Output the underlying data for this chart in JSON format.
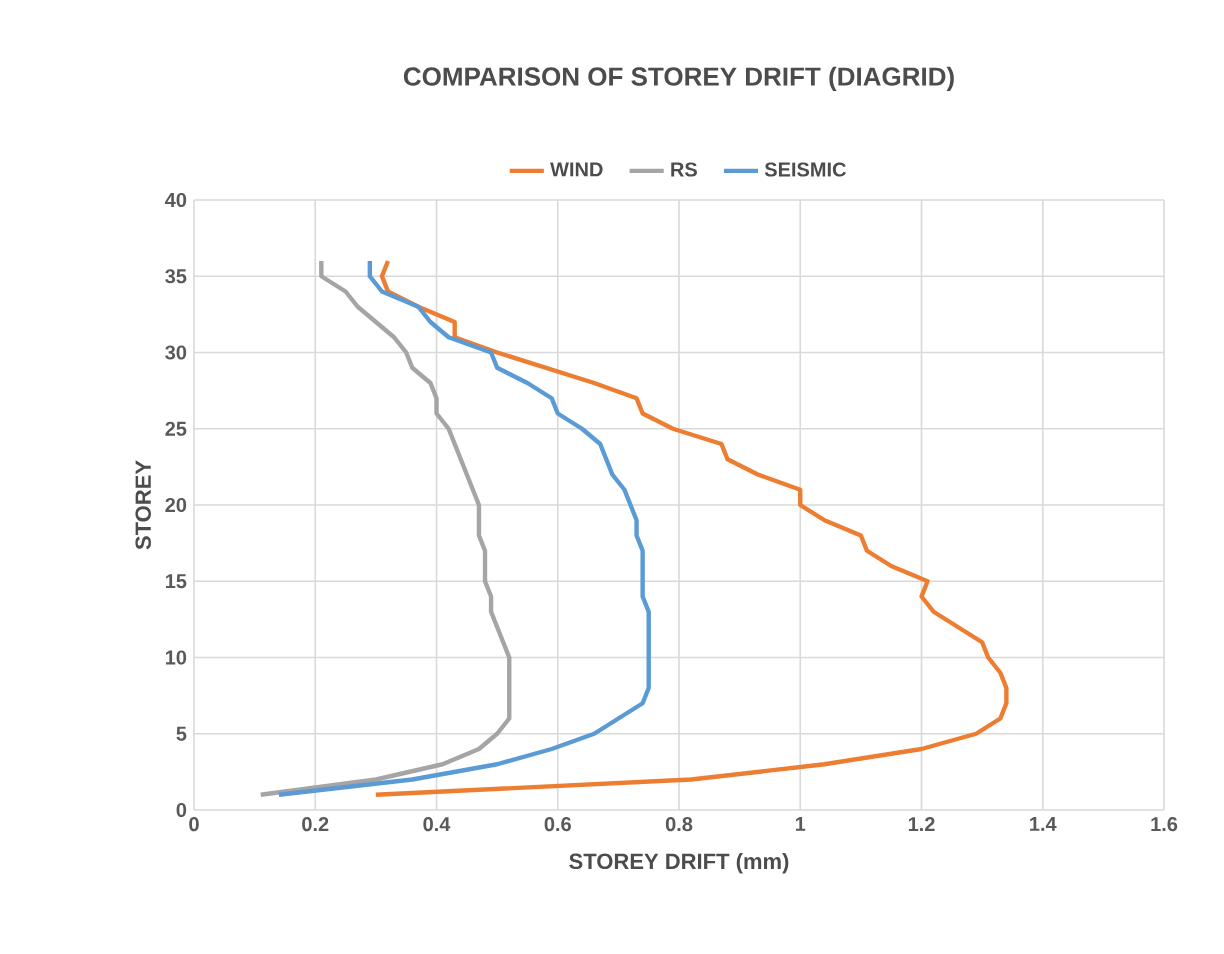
{
  "chart_data": {
    "type": "line",
    "title": "COMPARISON OF STOREY DRIFT (DIAGRID)",
    "xlabel": "STOREY DRIFT (mm)",
    "ylabel": "STOREY",
    "xlim": [
      0,
      1.6
    ],
    "xticks": [
      0,
      0.2,
      0.4,
      0.6,
      0.8,
      1,
      1.2,
      1.4,
      1.6
    ],
    "ylim": [
      0,
      40
    ],
    "yticks": [
      0,
      5,
      10,
      15,
      20,
      25,
      30,
      35,
      40
    ],
    "grid": true,
    "legend": "top",
    "marker": "none",
    "line_style": "solid",
    "series": [
      {
        "name": "WIND",
        "color": "#ed7d31",
        "x": [
          0.3,
          0.82,
          1.04,
          1.2,
          1.29,
          1.33,
          1.34,
          1.34,
          1.33,
          1.31,
          1.3,
          1.26,
          1.22,
          1.2,
          1.21,
          1.15,
          1.11,
          1.1,
          1.04,
          1.0,
          1.0,
          0.93,
          0.88,
          0.87,
          0.79,
          0.74,
          0.73,
          0.66,
          0.58,
          0.5,
          0.43,
          0.43,
          0.37,
          0.32,
          0.31,
          0.32
        ],
        "values": [
          1,
          2,
          3,
          4,
          5,
          6,
          7,
          8,
          9,
          10,
          11,
          12,
          13,
          14,
          15,
          16,
          17,
          18,
          19,
          20,
          21,
          22,
          23,
          24,
          25,
          26,
          27,
          28,
          29,
          30,
          31,
          32,
          33,
          34,
          35,
          36
        ]
      },
      {
        "name": "RS",
        "color": "#a5a5a5",
        "x": [
          0.11,
          0.3,
          0.41,
          0.47,
          0.5,
          0.52,
          0.52,
          0.52,
          0.52,
          0.52,
          0.51,
          0.5,
          0.49,
          0.49,
          0.48,
          0.48,
          0.48,
          0.47,
          0.47,
          0.47,
          0.46,
          0.45,
          0.44,
          0.43,
          0.42,
          0.4,
          0.4,
          0.39,
          0.36,
          0.35,
          0.33,
          0.3,
          0.27,
          0.25,
          0.21,
          0.21
        ],
        "values": [
          1,
          2,
          3,
          4,
          5,
          6,
          7,
          8,
          9,
          10,
          11,
          12,
          13,
          14,
          15,
          16,
          17,
          18,
          19,
          20,
          21,
          22,
          23,
          24,
          25,
          26,
          27,
          28,
          29,
          30,
          31,
          32,
          33,
          34,
          35,
          36
        ]
      },
      {
        "name": "SEISMIC",
        "color": "#5b9bd5",
        "x": [
          0.14,
          0.36,
          0.5,
          0.59,
          0.66,
          0.7,
          0.74,
          0.75,
          0.75,
          0.75,
          0.75,
          0.75,
          0.75,
          0.74,
          0.74,
          0.74,
          0.74,
          0.73,
          0.73,
          0.72,
          0.71,
          0.69,
          0.68,
          0.67,
          0.64,
          0.6,
          0.59,
          0.55,
          0.5,
          0.49,
          0.42,
          0.39,
          0.37,
          0.31,
          0.29,
          0.29
        ],
        "values": [
          1,
          2,
          3,
          4,
          5,
          6,
          7,
          8,
          9,
          10,
          11,
          12,
          13,
          14,
          15,
          16,
          17,
          18,
          19,
          20,
          21,
          22,
          23,
          24,
          25,
          26,
          27,
          28,
          29,
          30,
          31,
          32,
          33,
          34,
          35,
          36
        ]
      }
    ]
  }
}
